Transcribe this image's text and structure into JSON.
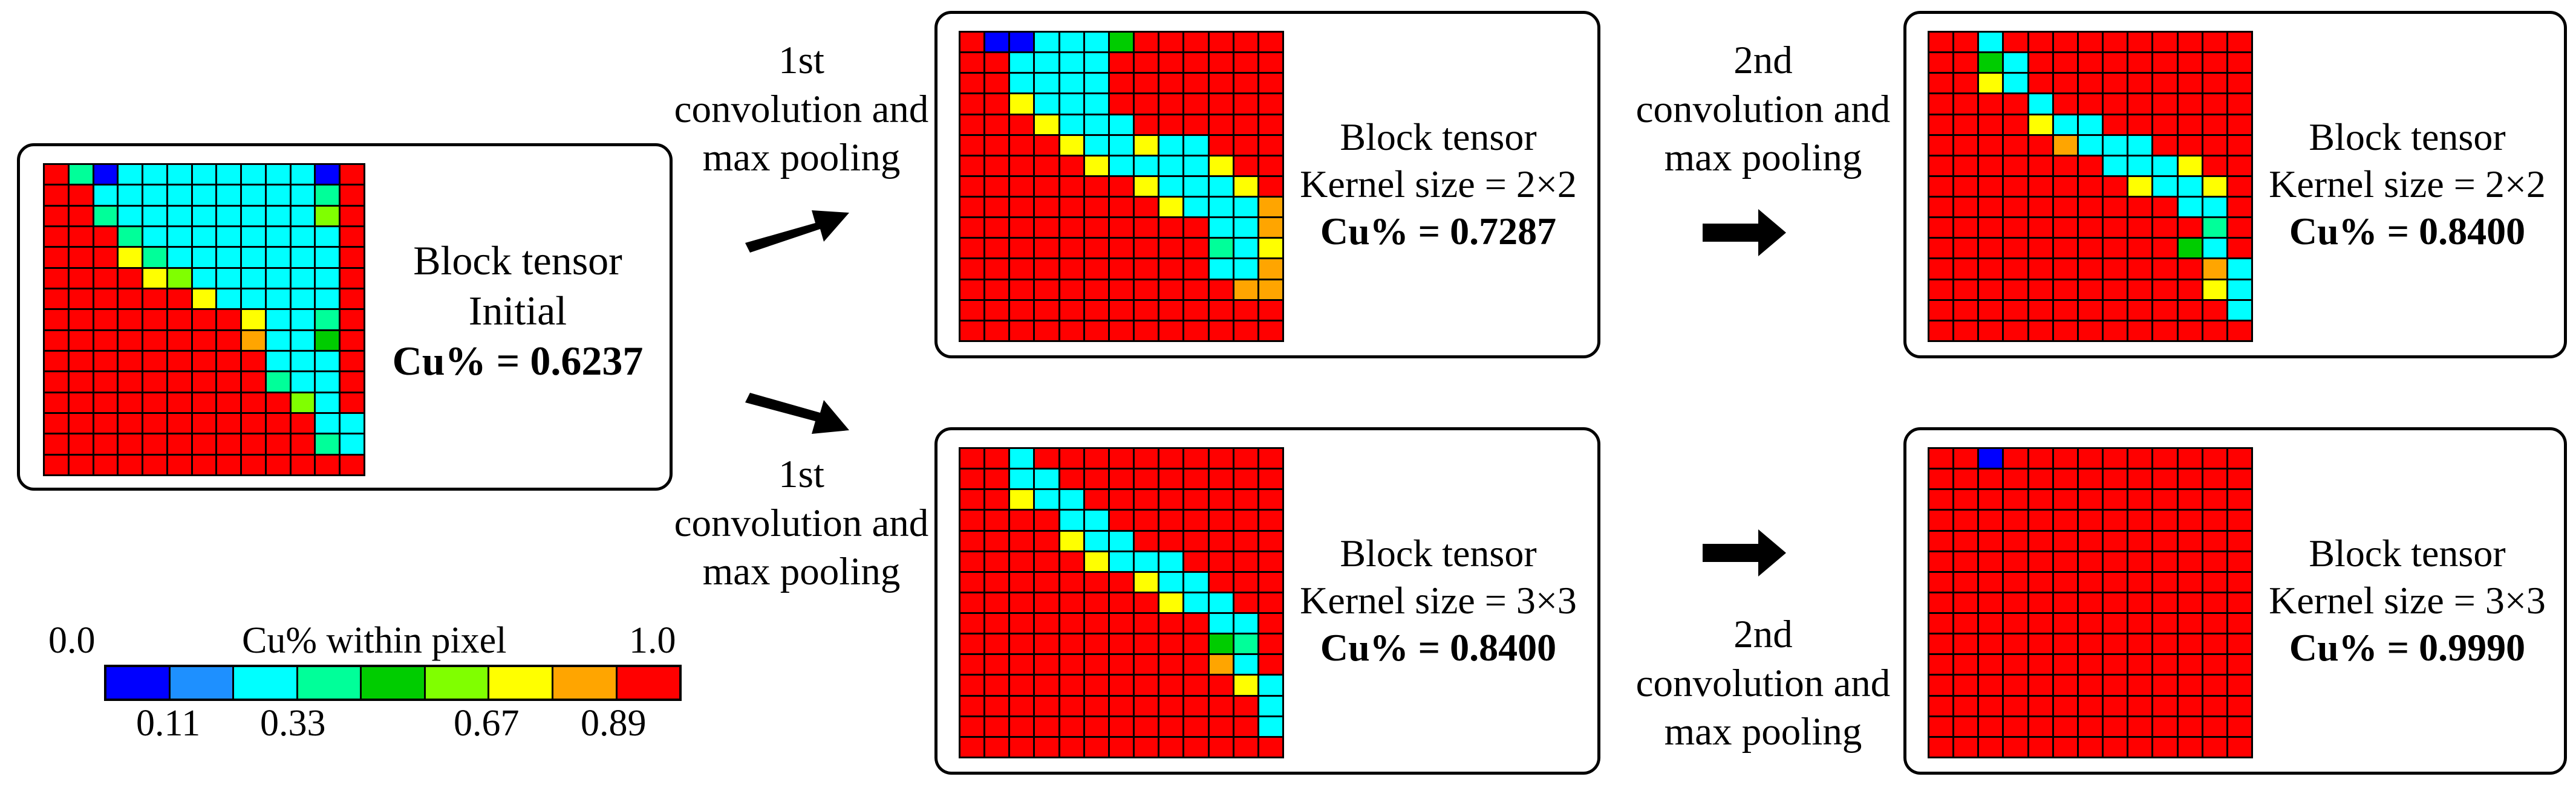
{
  "colors": [
    "#0000ff",
    "#1e90ff",
    "#00ffff",
    "#00ff99",
    "#00cc00",
    "#80ff00",
    "#ffff00",
    "#ffa500",
    "#ff0000"
  ],
  "panels": [
    {
      "id": "initial",
      "lines": [
        "Block tensor",
        "Initial",
        "Cu% = 0.6237"
      ],
      "grid": [
        "8302222222208",
        "8822222222238",
        "8832222222258",
        "8883222222228",
        "8886322222228",
        "8888652222228",
        "8888886222228",
        "8888888862238",
        "8888888872248",
        "8888888882228",
        "8888888883228",
        "8888888888528",
        "8888888888822",
        "8888888888832",
        "8888888888888"
      ]
    },
    {
      "id": "k2-first",
      "lines": [
        "Block tensor",
        "Kernel size = 2×2",
        "Cu% = 0.7287"
      ],
      "grid": [
        "8002224888888",
        "8822228888888",
        "8822228888888",
        "8862228888888",
        "8886222888888",
        "8888622622888",
        "8888862222688",
        "8888888622268",
        "8888888862227",
        "8888888888227",
        "8888888888326",
        "8888888888227",
        "8888888888877",
        "8888888888888",
        "8888888888888"
      ]
    },
    {
      "id": "k2-second",
      "lines": [
        "Block tensor",
        "Kernel size = 2×2",
        "Cu% = 0.8400"
      ],
      "grid": [
        "8828888888888",
        "8842888888888",
        "8862888888888",
        "8888288888888",
        "8888622888888",
        "8888872228888",
        "8888888222688",
        "8888888862268",
        "8888888888228",
        "8888888888838",
        "8888888888428",
        "8888888888872",
        "8888888888862",
        "8888888888882",
        "8888888888888"
      ]
    },
    {
      "id": "k3-first",
      "lines": [
        "Block tensor",
        "Kernel size = 3×3",
        "Cu% = 0.8400"
      ],
      "grid": [
        "8828888888888",
        "8822888888888",
        "8862288888888",
        "8888228888888",
        "8888622888888",
        "8888862228888",
        "8888888622888",
        "8888888862288",
        "8888888888228",
        "8888888888438",
        "8888888888728",
        "8888888888862",
        "8888888888882",
        "8888888888882",
        "8888888888888"
      ]
    },
    {
      "id": "k3-second",
      "lines": [
        "Block tensor",
        "Kernel size = 3×3",
        "Cu% = 0.9990"
      ],
      "grid": [
        "8808888888888",
        "8888888888888",
        "8888888888888",
        "8888888888888",
        "8888888888888",
        "8888888888888",
        "8888888888888",
        "8888888888888",
        "8888888888888",
        "8888888888888",
        "8888888888888",
        "8888888888888",
        "8888888888888",
        "8888888888888",
        "8888888888888"
      ]
    }
  ],
  "steps": {
    "first_top": [
      "1st",
      "convolution and",
      "max pooling"
    ],
    "first_bottom": [
      "1st",
      "convolution and",
      "max pooling"
    ],
    "second_top": [
      "2nd",
      "convolution and",
      "max pooling"
    ],
    "second_bottom": [
      "2nd",
      "convolution and",
      "max pooling"
    ]
  },
  "legend": {
    "title": "Cu% within pixel",
    "min_label": "0.0",
    "max_label": "1.0",
    "ticks": [
      "0.11",
      "0.33",
      "0.67",
      "0.89"
    ]
  }
}
